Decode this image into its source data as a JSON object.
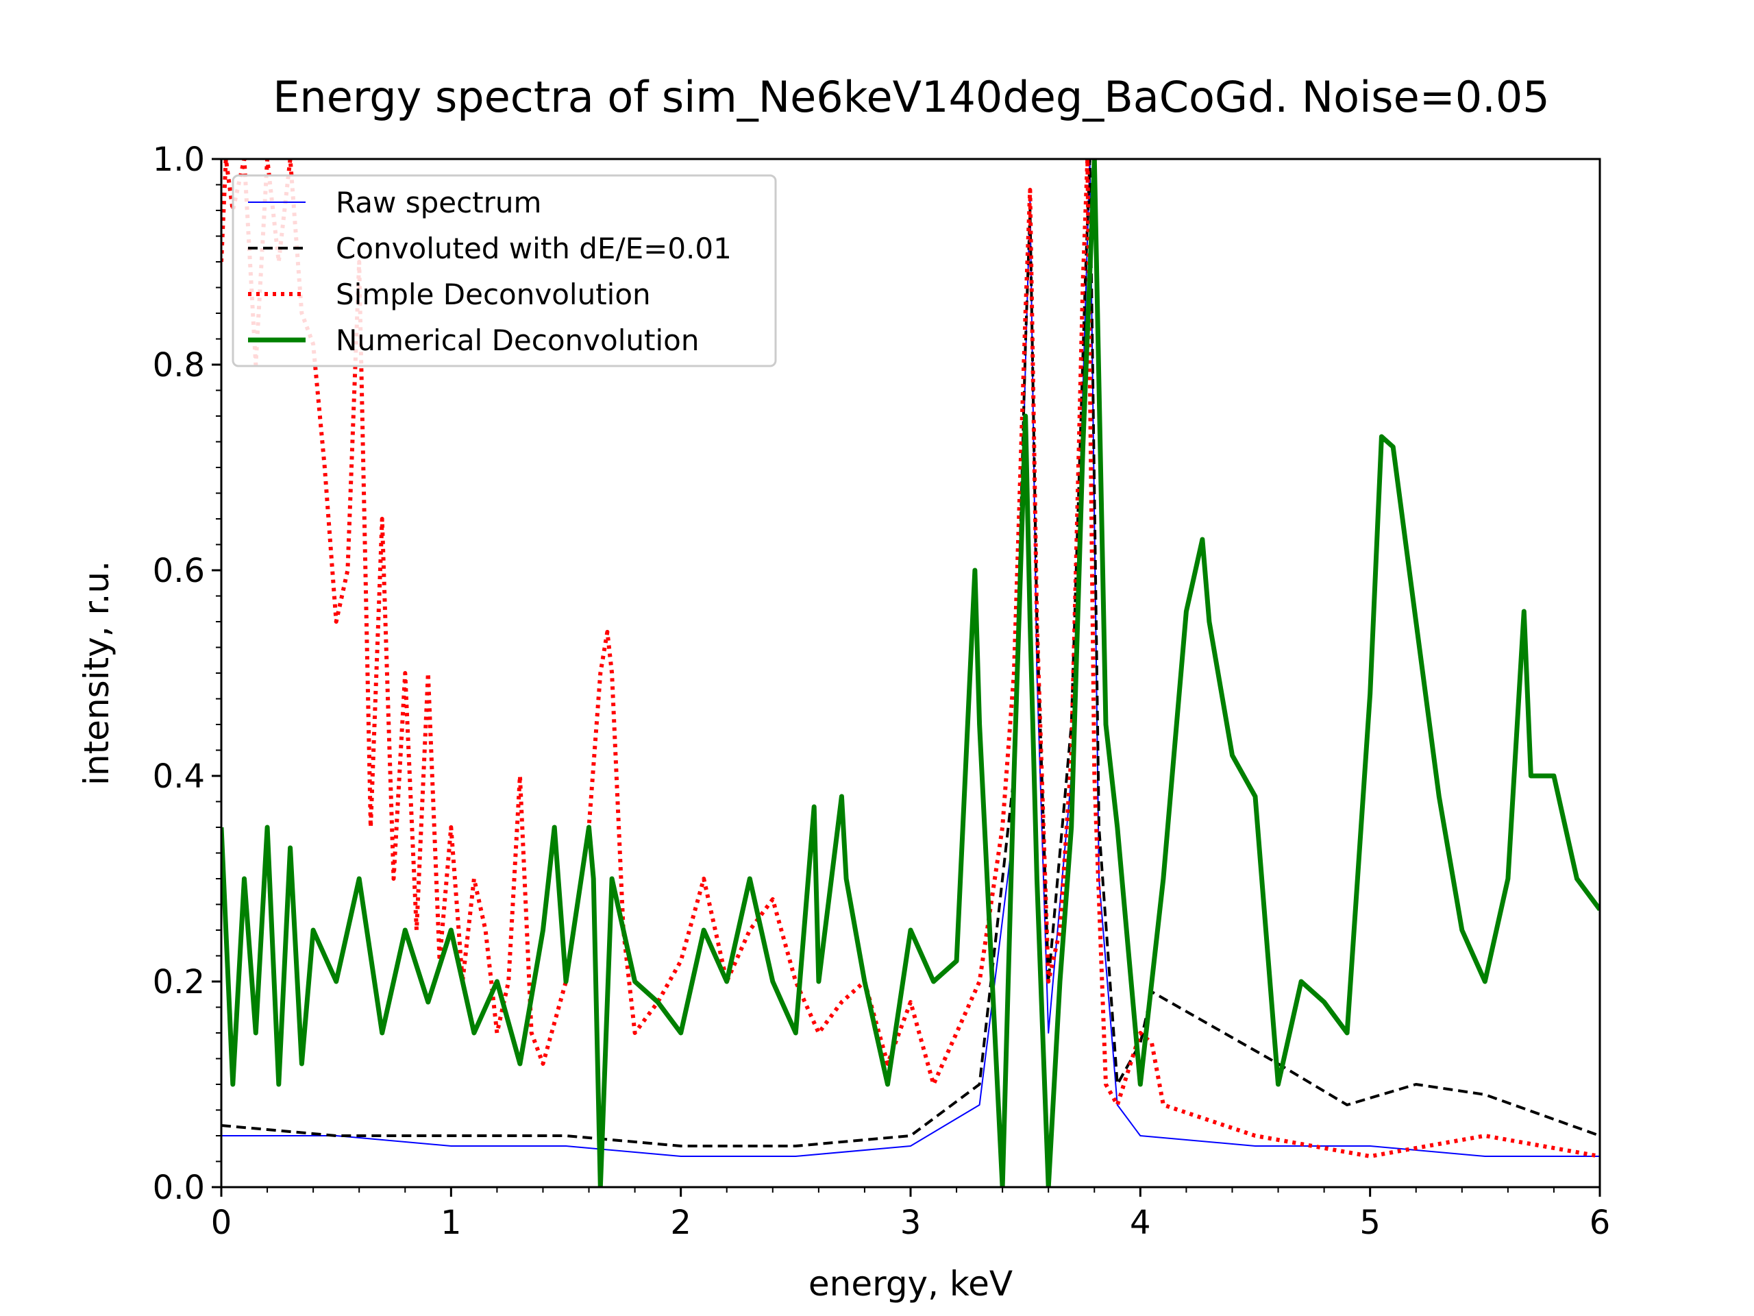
{
  "chart_data": {
    "type": "line",
    "title": "Energy spectra of sim_Ne6keV140deg_BaCoGd. Noise=0.05",
    "xlabel": "energy, keV",
    "ylabel": "intensity, r.u.",
    "xlim": [
      0,
      6
    ],
    "ylim": [
      0,
      1
    ],
    "xticks": [
      0,
      1,
      2,
      3,
      4,
      5,
      6
    ],
    "xtick_labels": [
      "0",
      "1",
      "2",
      "3",
      "4",
      "5",
      "6"
    ],
    "yticks": [
      0.0,
      0.2,
      0.4,
      0.6,
      0.8,
      1.0
    ],
    "ytick_labels": [
      "0.0",
      "0.2",
      "0.4",
      "0.6",
      "0.8",
      "1.0"
    ],
    "grid": false,
    "legend_position": "top-left",
    "series": [
      {
        "name": "Raw spectrum",
        "color": "#0000ff",
        "style": "solid-thin",
        "x": [
          0.0,
          0.5,
          1.0,
          1.5,
          2.0,
          2.5,
          3.0,
          3.3,
          3.45,
          3.5,
          3.52,
          3.55,
          3.6,
          3.7,
          3.76,
          3.78,
          3.82,
          3.9,
          4.0,
          4.5,
          5.0,
          5.5,
          6.0
        ],
        "y": [
          0.05,
          0.05,
          0.04,
          0.04,
          0.03,
          0.03,
          0.04,
          0.08,
          0.35,
          0.8,
          0.96,
          0.5,
          0.15,
          0.4,
          0.85,
          1.0,
          0.3,
          0.08,
          0.05,
          0.04,
          0.04,
          0.03,
          0.03
        ]
      },
      {
        "name": "Convoluted with dE/E=0.01",
        "color": "#000000",
        "style": "dashed",
        "x": [
          0.0,
          0.5,
          1.0,
          1.5,
          2.0,
          2.5,
          3.0,
          3.3,
          3.45,
          3.5,
          3.52,
          3.55,
          3.6,
          3.7,
          3.76,
          3.78,
          3.82,
          3.9,
          4.0,
          4.05,
          4.6,
          4.9,
          5.2,
          5.5,
          6.0
        ],
        "y": [
          0.06,
          0.05,
          0.05,
          0.05,
          0.04,
          0.04,
          0.05,
          0.1,
          0.4,
          0.82,
          0.95,
          0.55,
          0.2,
          0.45,
          0.88,
          1.0,
          0.35,
          0.1,
          0.14,
          0.19,
          0.12,
          0.08,
          0.1,
          0.09,
          0.05
        ]
      },
      {
        "name": "Simple Deconvolution",
        "color": "#ff0000",
        "style": "dotted",
        "x": [
          0.0,
          0.02,
          0.05,
          0.1,
          0.15,
          0.2,
          0.25,
          0.3,
          0.35,
          0.4,
          0.45,
          0.5,
          0.55,
          0.6,
          0.65,
          0.7,
          0.75,
          0.8,
          0.85,
          0.9,
          0.95,
          1.0,
          1.05,
          1.1,
          1.15,
          1.2,
          1.25,
          1.3,
          1.35,
          1.4,
          1.5,
          1.6,
          1.65,
          1.68,
          1.7,
          1.75,
          1.8,
          1.9,
          2.0,
          2.1,
          2.2,
          2.3,
          2.4,
          2.5,
          2.6,
          2.7,
          2.8,
          2.9,
          3.0,
          3.1,
          3.2,
          3.3,
          3.4,
          3.45,
          3.5,
          3.52,
          3.55,
          3.6,
          3.65,
          3.7,
          3.75,
          3.77,
          3.8,
          3.85,
          3.9,
          4.0,
          4.05,
          4.1,
          4.5,
          5.0,
          5.5,
          6.0
        ],
        "y": [
          0.9,
          1.0,
          0.95,
          1.0,
          0.8,
          1.0,
          0.9,
          1.0,
          0.85,
          0.82,
          0.7,
          0.55,
          0.6,
          0.9,
          0.35,
          0.65,
          0.3,
          0.5,
          0.25,
          0.5,
          0.22,
          0.35,
          0.2,
          0.3,
          0.25,
          0.15,
          0.2,
          0.4,
          0.15,
          0.12,
          0.2,
          0.35,
          0.5,
          0.54,
          0.5,
          0.25,
          0.15,
          0.18,
          0.22,
          0.3,
          0.2,
          0.25,
          0.28,
          0.2,
          0.15,
          0.18,
          0.2,
          0.12,
          0.18,
          0.1,
          0.15,
          0.2,
          0.35,
          0.5,
          0.85,
          0.97,
          0.55,
          0.2,
          0.25,
          0.42,
          0.88,
          1.0,
          0.4,
          0.1,
          0.08,
          0.15,
          0.14,
          0.08,
          0.05,
          0.03,
          0.05,
          0.03
        ]
      },
      {
        "name": "Numerical Deconvolution",
        "color": "#008000",
        "style": "solid-thick",
        "x": [
          0.0,
          0.05,
          0.1,
          0.15,
          0.2,
          0.25,
          0.3,
          0.35,
          0.4,
          0.5,
          0.6,
          0.7,
          0.8,
          0.9,
          1.0,
          1.1,
          1.2,
          1.3,
          1.4,
          1.45,
          1.5,
          1.6,
          1.62,
          1.65,
          1.7,
          1.8,
          1.9,
          2.0,
          2.1,
          2.2,
          2.3,
          2.4,
          2.5,
          2.58,
          2.6,
          2.7,
          2.72,
          2.8,
          2.9,
          3.0,
          3.1,
          3.2,
          3.28,
          3.3,
          3.4,
          3.45,
          3.5,
          3.52,
          3.55,
          3.6,
          3.65,
          3.7,
          3.75,
          3.8,
          3.85,
          3.9,
          4.0,
          4.1,
          4.2,
          4.27,
          4.3,
          4.4,
          4.5,
          4.6,
          4.7,
          4.8,
          4.9,
          5.0,
          5.05,
          5.1,
          5.2,
          5.3,
          5.4,
          5.5,
          5.6,
          5.67,
          5.7,
          5.8,
          5.9,
          6.0
        ],
        "y": [
          0.35,
          0.1,
          0.3,
          0.15,
          0.35,
          0.1,
          0.33,
          0.12,
          0.25,
          0.2,
          0.3,
          0.15,
          0.25,
          0.18,
          0.25,
          0.15,
          0.2,
          0.12,
          0.25,
          0.35,
          0.2,
          0.35,
          0.3,
          0.0,
          0.3,
          0.2,
          0.18,
          0.15,
          0.25,
          0.2,
          0.3,
          0.2,
          0.15,
          0.37,
          0.2,
          0.38,
          0.3,
          0.2,
          0.1,
          0.25,
          0.2,
          0.22,
          0.6,
          0.45,
          0.0,
          0.4,
          0.75,
          0.55,
          0.3,
          0.0,
          0.2,
          0.35,
          0.72,
          1.0,
          0.45,
          0.35,
          0.1,
          0.3,
          0.56,
          0.63,
          0.55,
          0.42,
          0.38,
          0.1,
          0.2,
          0.18,
          0.15,
          0.48,
          0.73,
          0.72,
          0.55,
          0.38,
          0.25,
          0.2,
          0.3,
          0.56,
          0.4,
          0.4,
          0.3,
          0.27
        ]
      }
    ]
  }
}
